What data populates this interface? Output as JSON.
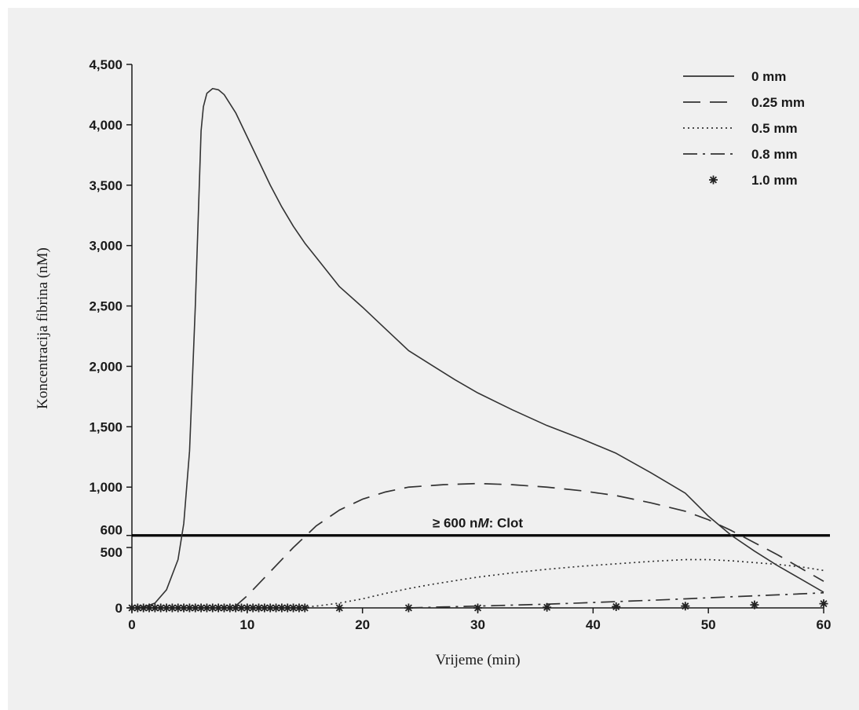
{
  "chart_data": {
    "type": "line",
    "title": "",
    "xlabel": "Vrijeme (min)",
    "ylabel": "Koncentracija fibrina (nM)",
    "xlim": [
      0,
      60
    ],
    "ylim": [
      0,
      4500
    ],
    "xticks": [
      0,
      10,
      20,
      30,
      40,
      50,
      60
    ],
    "xtick_labels": [
      "0",
      "10",
      "20",
      "30",
      "40",
      "50",
      "60"
    ],
    "yticks": [
      0,
      500,
      600,
      1000,
      1500,
      2000,
      2500,
      3000,
      3500,
      4000,
      4500
    ],
    "ytick_labels": [
      "0",
      "500",
      "600",
      "1,000",
      "1,500",
      "2,000",
      "2,500",
      "3,000",
      "3,500",
      "4,000",
      "4,500"
    ],
    "grid": false,
    "legend_position": "top-right",
    "threshold": {
      "y": 600,
      "label": "≥ 600 nM: Clot",
      "label_prefix": "≥ 600 n",
      "label_italic": "M",
      "label_suffix": ": Clot"
    },
    "series": [
      {
        "name": "0 mm",
        "style": "solid",
        "x": [
          0,
          1,
          2,
          3,
          4,
          4.5,
          5,
          5.5,
          6,
          6.2,
          6.5,
          7,
          7.5,
          8,
          9,
          10,
          11,
          12,
          13,
          14,
          15,
          16,
          17,
          18,
          20,
          22,
          24,
          26,
          28,
          30,
          33,
          36,
          39,
          42,
          45,
          48,
          50,
          52,
          54,
          56,
          58,
          60
        ],
        "y": [
          0,
          5,
          40,
          150,
          400,
          700,
          1300,
          2500,
          3950,
          4150,
          4260,
          4300,
          4290,
          4250,
          4100,
          3900,
          3700,
          3500,
          3320,
          3160,
          3020,
          2900,
          2780,
          2660,
          2490,
          2310,
          2130,
          2010,
          1890,
          1780,
          1640,
          1510,
          1400,
          1280,
          1120,
          950,
          760,
          600,
          470,
          350,
          240,
          130
        ]
      },
      {
        "name": "0.25 mm",
        "style": "dashed",
        "x": [
          8.8,
          10,
          12,
          14,
          16,
          18,
          20,
          22,
          24,
          27,
          30,
          33,
          36,
          39,
          42,
          45,
          48,
          50,
          52,
          54,
          56,
          58,
          60
        ],
        "y": [
          0,
          100,
          300,
          500,
          680,
          810,
          900,
          960,
          1000,
          1020,
          1030,
          1020,
          1000,
          970,
          930,
          870,
          800,
          730,
          640,
          540,
          440,
          330,
          220
        ]
      },
      {
        "name": "0.5 mm",
        "style": "dotted",
        "x": [
          14,
          16,
          18,
          20,
          22,
          24,
          26,
          28,
          30,
          33,
          36,
          39,
          42,
          45,
          48,
          50,
          52,
          54,
          56,
          58,
          60
        ],
        "y": [
          0,
          15,
          40,
          75,
          120,
          160,
          195,
          225,
          255,
          290,
          320,
          345,
          365,
          385,
          400,
          400,
          390,
          375,
          360,
          340,
          310
        ]
      },
      {
        "name": "0.8 mm",
        "style": "dashdot",
        "x": [
          24,
          27,
          30,
          33,
          36,
          39,
          42,
          45,
          48,
          51,
          54,
          57,
          60
        ],
        "y": [
          0,
          8,
          15,
          23,
          31,
          41,
          52,
          63,
          75,
          88,
          100,
          112,
          125
        ]
      },
      {
        "name": "1.0 mm",
        "style": "star",
        "x": [
          0,
          0.5,
          1,
          1.5,
          2,
          2.5,
          3,
          3.5,
          4,
          4.5,
          5,
          5.5,
          6,
          6.5,
          7,
          7.5,
          8,
          8.5,
          9,
          9.5,
          10,
          10.5,
          11,
          11.5,
          12,
          12.5,
          13,
          13.5,
          14,
          14.5,
          15,
          18,
          24,
          30,
          36,
          42,
          48,
          54,
          60
        ],
        "y": [
          0,
          0,
          0,
          0,
          0,
          0,
          0,
          0,
          0,
          0,
          0,
          0,
          0,
          0,
          0,
          0,
          0,
          0,
          0,
          0,
          0,
          0,
          0,
          0,
          0,
          0,
          0,
          0,
          0,
          0,
          0,
          0,
          0,
          0,
          5,
          10,
          15,
          25,
          35
        ]
      }
    ]
  }
}
